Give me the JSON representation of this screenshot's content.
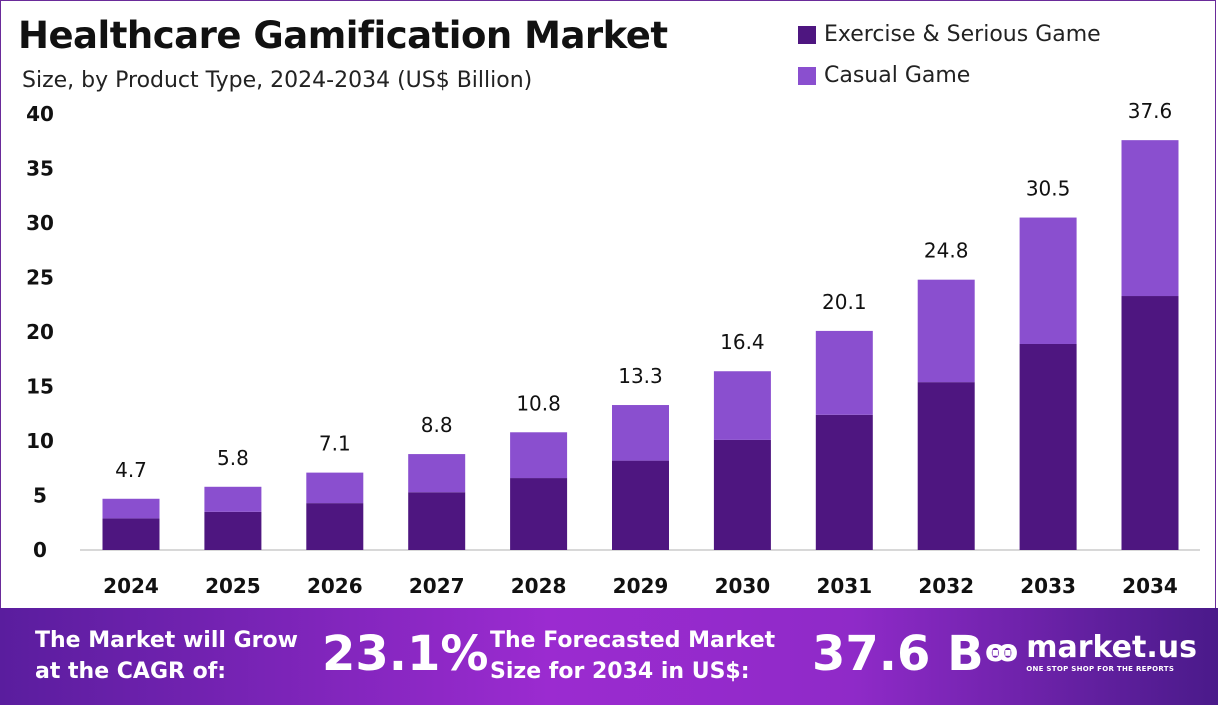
{
  "title": "Healthcare Gamification Market",
  "subtitle": "Size, by Product Type, 2024-2034 (US$ Billion)",
  "colors": {
    "exercise": "#4e1680",
    "casual": "#8a4fcf"
  },
  "chart_data": {
    "type": "bar",
    "stacked": true,
    "categories": [
      "2024",
      "2025",
      "2026",
      "2027",
      "2028",
      "2029",
      "2030",
      "2031",
      "2032",
      "2033",
      "2034"
    ],
    "series": [
      {
        "name": "Exercise & Serious Game",
        "values": [
          2.9,
          3.5,
          4.3,
          5.3,
          6.6,
          8.2,
          10.1,
          12.4,
          15.4,
          18.9,
          23.3
        ]
      },
      {
        "name": "Casual Game",
        "values": [
          1.8,
          2.3,
          2.8,
          3.5,
          4.2,
          5.1,
          6.3,
          7.7,
          9.4,
          11.6,
          14.3
        ]
      }
    ],
    "totals": [
      "4.7",
      "5.8",
      "7.1",
      "8.8",
      "10.8",
      "13.3",
      "16.4",
      "20.1",
      "24.8",
      "30.5",
      "37.6"
    ],
    "ylim": [
      0,
      40
    ],
    "yticks": [
      "0",
      "5",
      "10",
      "15",
      "20",
      "25",
      "30",
      "35",
      "40"
    ],
    "grid": false,
    "legend": "top-right"
  },
  "footer": {
    "cagr_label_1": "The Market will Grow",
    "cagr_label_2": "at the CAGR of:",
    "cagr_value": "23.1%",
    "forecast_label_1": "The Forecasted Market",
    "forecast_label_2": "Size for 2034 in US$:",
    "forecast_value": "37.6 B",
    "logo_name": "market.us",
    "logo_tagline": "ONE STOP SHOP FOR THE REPORTS"
  }
}
